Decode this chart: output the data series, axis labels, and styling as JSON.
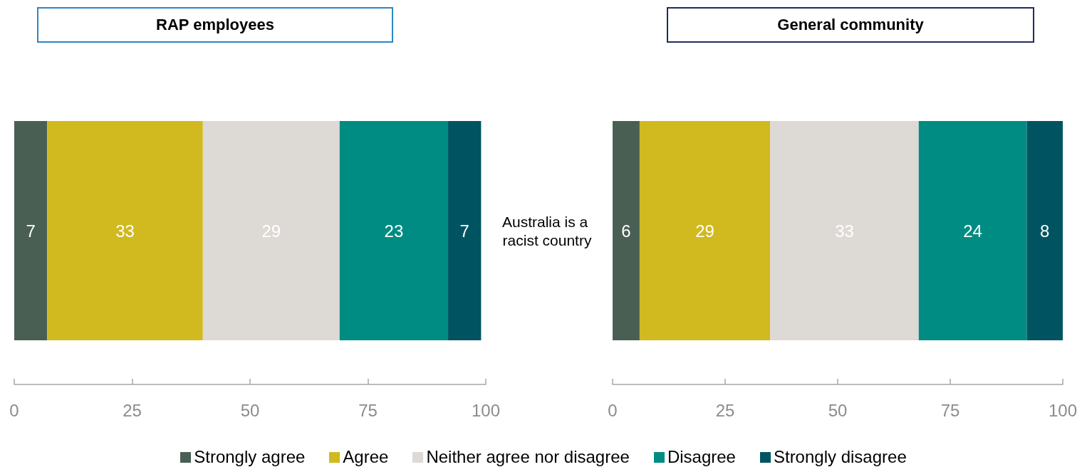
{
  "chart_data": [
    {
      "type": "bar",
      "orientation": "horizontal",
      "stacked": true,
      "title": "RAP employees",
      "categories": [
        "Australia is a racist country"
      ],
      "xlim": [
        0,
        100
      ],
      "xticks": [
        0,
        25,
        50,
        75,
        100
      ],
      "data_labels": true,
      "grid": false,
      "legend": "bottom",
      "series": [
        {
          "name": "Strongly agree",
          "color": "#4a5f54",
          "values": [
            7
          ]
        },
        {
          "name": "Agree",
          "color": "#d1b920",
          "values": [
            33
          ]
        },
        {
          "name": "Neither agree nor disagree",
          "color": "#ddd9d5",
          "values": [
            29
          ]
        },
        {
          "name": "Disagree",
          "color": "#008c82",
          "values": [
            23
          ]
        },
        {
          "name": "Strongly disagree",
          "color": "#005461",
          "values": [
            7
          ]
        }
      ]
    },
    {
      "type": "bar",
      "orientation": "horizontal",
      "stacked": true,
      "title": "General community",
      "categories": [
        null
      ],
      "xlim": [
        0,
        100
      ],
      "xticks": [
        0,
        25,
        50,
        75,
        100
      ],
      "data_labels": true,
      "grid": false,
      "series": [
        {
          "color": "#4a5f54",
          "values": [
            6
          ]
        },
        {
          "color": "#d1b920",
          "values": [
            29
          ]
        },
        {
          "color": "#ddd9d5",
          "values": [
            33
          ]
        },
        {
          "color": "#008c82",
          "values": [
            24
          ]
        },
        {
          "color": "#005461",
          "values": [
            8
          ]
        }
      ]
    }
  ]
}
